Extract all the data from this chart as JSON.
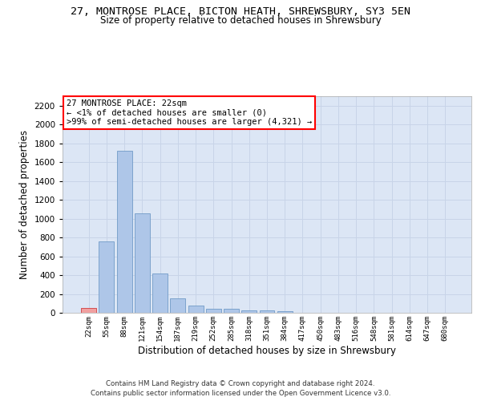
{
  "title_line1": "27, MONTROSE PLACE, BICTON HEATH, SHREWSBURY, SY3 5EN",
  "title_line2": "Size of property relative to detached houses in Shrewsbury",
  "xlabel": "Distribution of detached houses by size in Shrewsbury",
  "ylabel": "Number of detached properties",
  "categories": [
    "22sqm",
    "55sqm",
    "88sqm",
    "121sqm",
    "154sqm",
    "187sqm",
    "219sqm",
    "252sqm",
    "285sqm",
    "318sqm",
    "351sqm",
    "384sqm",
    "417sqm",
    "450sqm",
    "483sqm",
    "516sqm",
    "548sqm",
    "581sqm",
    "614sqm",
    "647sqm",
    "680sqm"
  ],
  "values": [
    50,
    760,
    1720,
    1060,
    420,
    150,
    80,
    45,
    40,
    25,
    22,
    18,
    0,
    0,
    0,
    0,
    0,
    0,
    0,
    0,
    0
  ],
  "bar_color": "#aec6e8",
  "bar_edge_color": "#6090c0",
  "highlight_bar_index": 0,
  "highlight_bar_facecolor": "#f0a0a0",
  "highlight_bar_edgecolor": "#cc2222",
  "annotation_text": "27 MONTROSE PLACE: 22sqm\n← <1% of detached houses are smaller (0)\n>99% of semi-detached houses are larger (4,321) →",
  "ylim": [
    0,
    2300
  ],
  "yticks": [
    0,
    200,
    400,
    600,
    800,
    1000,
    1200,
    1400,
    1600,
    1800,
    2000,
    2200
  ],
  "grid_color": "#c8d4e8",
  "bg_color": "#dce6f5",
  "footer": "Contains HM Land Registry data © Crown copyright and database right 2024.\nContains public sector information licensed under the Open Government Licence v3.0."
}
